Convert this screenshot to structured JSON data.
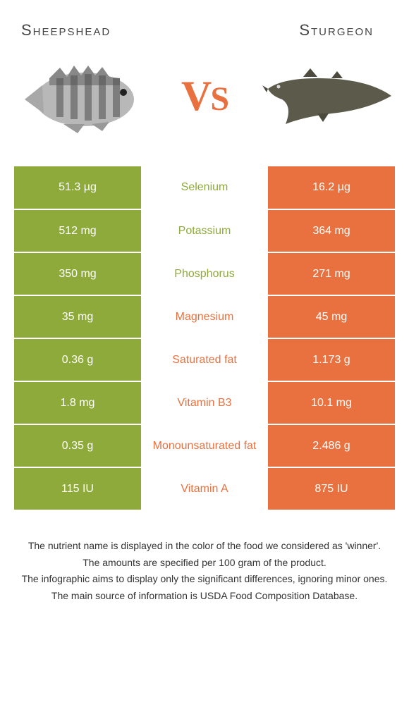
{
  "left": {
    "name": "Sheepshead",
    "color": "#8eaa3a"
  },
  "right": {
    "name": "Sturgeon",
    "color": "#e9713f"
  },
  "vs": "VS",
  "rows": [
    {
      "nutrient": "Selenium",
      "left": "51.3 µg",
      "right": "16.2 µg",
      "winner": "left"
    },
    {
      "nutrient": "Potassium",
      "left": "512 mg",
      "right": "364 mg",
      "winner": "left"
    },
    {
      "nutrient": "Phosphorus",
      "left": "350 mg",
      "right": "271 mg",
      "winner": "left"
    },
    {
      "nutrient": "Magnesium",
      "left": "35 mg",
      "right": "45 mg",
      "winner": "right"
    },
    {
      "nutrient": "Saturated fat",
      "left": "0.36 g",
      "right": "1.173 g",
      "winner": "right"
    },
    {
      "nutrient": "Vitamin B3",
      "left": "1.8 mg",
      "right": "10.1 mg",
      "winner": "right"
    },
    {
      "nutrient": "Monounsaturated fat",
      "left": "0.35 g",
      "right": "2.486 g",
      "winner": "right"
    },
    {
      "nutrient": "Vitamin A",
      "left": "115 IU",
      "right": "875 IU",
      "winner": "right"
    }
  ],
  "footer": [
    "The nutrient name is displayed in the color of the food we considered as 'winner'.",
    "The amounts are specified per 100 gram of the product.",
    "The infographic aims to display only the significant differences, ignoring minor ones.",
    "The main source of information is USDA Food Composition Database."
  ]
}
